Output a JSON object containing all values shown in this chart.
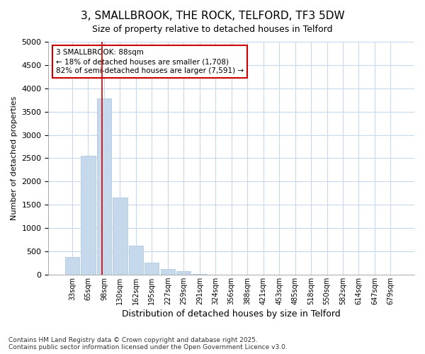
{
  "title_line1": "3, SMALLBROOK, THE ROCK, TELFORD, TF3 5DW",
  "title_line2": "Size of property relative to detached houses in Telford",
  "xlabel": "Distribution of detached houses by size in Telford",
  "ylabel": "Number of detached properties",
  "categories": [
    "33sqm",
    "65sqm",
    "98sqm",
    "130sqm",
    "162sqm",
    "195sqm",
    "227sqm",
    "259sqm",
    "291sqm",
    "324sqm",
    "356sqm",
    "388sqm",
    "421sqm",
    "453sqm",
    "485sqm",
    "518sqm",
    "550sqm",
    "582sqm",
    "614sqm",
    "647sqm",
    "679sqm"
  ],
  "values": [
    380,
    2550,
    3780,
    1650,
    620,
    250,
    120,
    70,
    5,
    0,
    0,
    0,
    0,
    0,
    0,
    0,
    0,
    0,
    0,
    0,
    0
  ],
  "bar_color": "#c6d9ec",
  "bar_edge_color": "#a8c4dc",
  "vline_color": "#cc0000",
  "annotation_text": "3 SMALLBROOK: 88sqm\n← 18% of detached houses are smaller (1,708)\n82% of semi-detached houses are larger (7,591) →",
  "annotation_box_color": "#ffffff",
  "annotation_box_edge": "#cc0000",
  "ylim": [
    0,
    5000
  ],
  "yticks": [
    0,
    500,
    1000,
    1500,
    2000,
    2500,
    3000,
    3500,
    4000,
    4500,
    5000
  ],
  "footer_line1": "Contains HM Land Registry data © Crown copyright and database right 2025.",
  "footer_line2": "Contains public sector information licensed under the Open Government Licence v3.0.",
  "bg_color": "#ffffff",
  "plot_bg_color": "#ffffff",
  "grid_color": "#c8d8ec"
}
